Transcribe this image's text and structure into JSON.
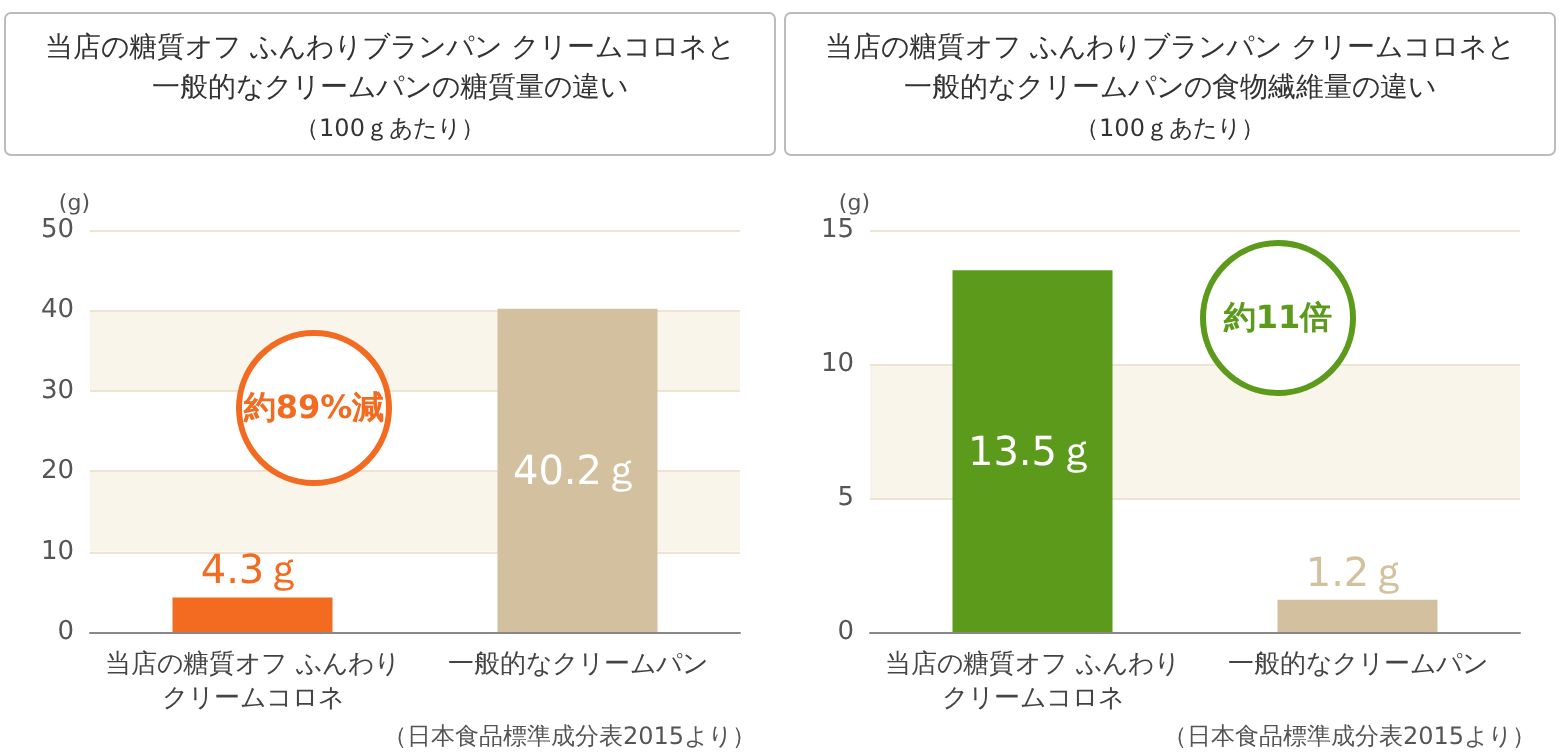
{
  "chart_data": [
    {
      "type": "bar",
      "title": "当店の糖質オフ ふんわりブランパン クリームコロネと一般的なクリームパンの糖質量の違い",
      "subtitle": "（100ｇあたり）",
      "ylabel": "(g)",
      "categories": [
        "当店の糖質オフ ふんわりクリームコロネ",
        "一般的なクリームパン"
      ],
      "values": [
        4.3,
        40.2
      ],
      "colors": [
        "#f26b21",
        "#d3c09e"
      ],
      "value_labels": [
        "4.3ｇ",
        "40.2ｇ"
      ],
      "ylim": [
        0,
        50
      ],
      "yticks": [
        0,
        10,
        20,
        30,
        40,
        50
      ],
      "grid": "y",
      "bands": [
        {
          "axis": "y",
          "from": 10,
          "to": 20,
          "color": "#faf5ea"
        },
        {
          "axis": "y",
          "from": 30,
          "to": 40,
          "color": "#faf5ea"
        }
      ],
      "annotations": [
        "約89%減",
        "（日本食品標準成分表2015より）"
      ]
    },
    {
      "type": "bar",
      "title": "当店の糖質オフ ふんわりブランパン クリームコロネと一般的なクリームパンの食物繊維量の違い",
      "subtitle": "（100ｇあたり）",
      "ylabel": "(g)",
      "categories": [
        "当店の糖質オフ ふんわりクリームコロネ",
        "一般的なクリームパン"
      ],
      "values": [
        13.5,
        1.2
      ],
      "colors": [
        "#5b9a1a",
        "#d3c09e"
      ],
      "value_labels": [
        "13.5ｇ",
        "1.2ｇ"
      ],
      "ylim": [
        0,
        15
      ],
      "yticks": [
        0,
        5,
        10,
        15
      ],
      "grid": "y",
      "bands": [
        {
          "axis": "y",
          "from": 5,
          "to": 10,
          "color": "#faf5ea"
        }
      ],
      "annotations": [
        "約11倍",
        "（日本食品標準成分表2015より）"
      ]
    }
  ]
}
